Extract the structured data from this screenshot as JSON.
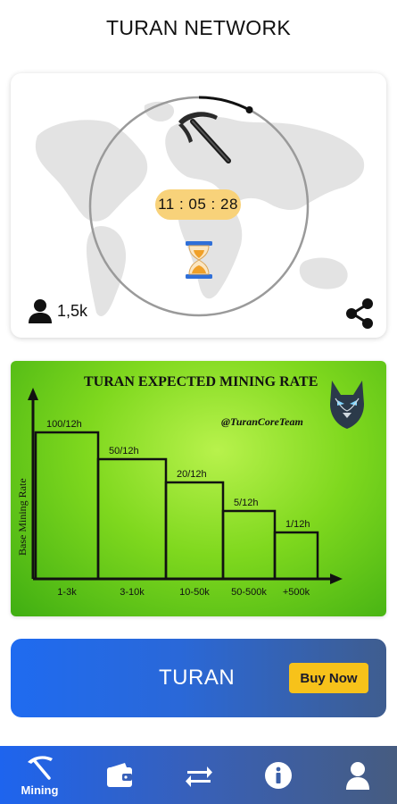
{
  "app": {
    "title": "TURAN NETWORK"
  },
  "mining": {
    "timer": "11 : 05 : 28",
    "users_count": "1,5k",
    "progress": 0.13
  },
  "rate_card": {
    "title": "TURAN EXPECTED MINING RATE",
    "handle": "@TuranCoreTeam",
    "ylabel": "Base Mining Rate"
  },
  "chart_data": {
    "type": "bar",
    "title": "TURAN EXPECTED MINING RATE",
    "xlabel": "",
    "ylabel": "Base Mining Rate",
    "categories": [
      "1-3k",
      "3-10k",
      "10-50k",
      "50-500k",
      "+500k"
    ],
    "values": [
      100,
      50,
      20,
      5,
      1
    ],
    "bar_labels": [
      "100/12h",
      "50/12h",
      "20/12h",
      "5/12h",
      "1/12h"
    ],
    "grid": false,
    "colors": {
      "bar_fill": "#7fd81e",
      "bar_stroke": "#111111"
    }
  },
  "banner": {
    "label": "TURAN",
    "button": "Buy Now"
  },
  "nav": {
    "items": [
      {
        "icon": "pickaxe-icon",
        "label": "Mining",
        "active": true
      },
      {
        "icon": "wallet-icon",
        "label": ""
      },
      {
        "icon": "transfer-icon",
        "label": ""
      },
      {
        "icon": "info-icon",
        "label": ""
      },
      {
        "icon": "user-icon",
        "label": ""
      }
    ]
  },
  "colors": {
    "accent": "#1f6bf0",
    "button": "#f7c21a",
    "timer_bg": "#f8d27a",
    "chart_bg": "#7fd81e"
  }
}
